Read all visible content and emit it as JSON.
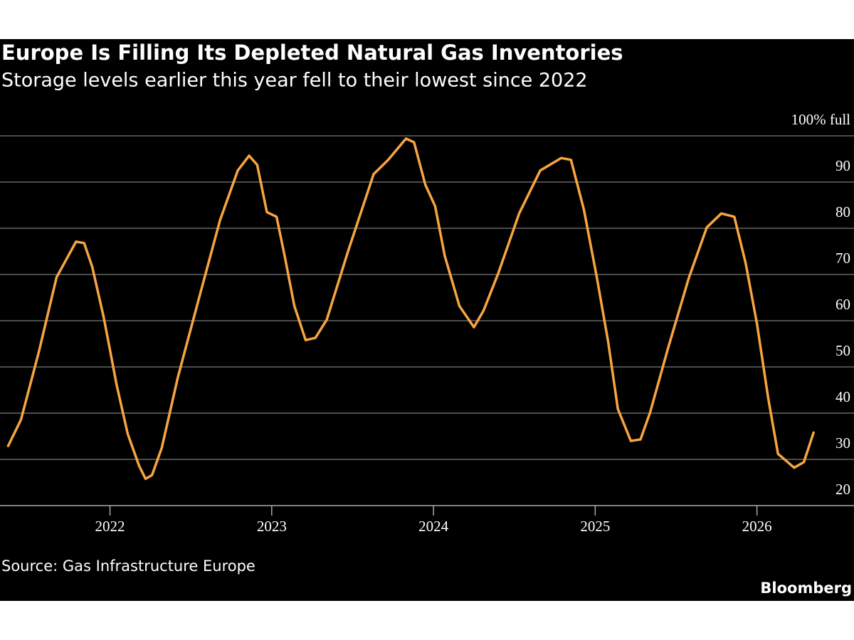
{
  "chart_data": {
    "type": "line",
    "title": "Europe Is Filling Its Depleted Natural Gas Inventories",
    "subtitle": "Storage levels earlier this year fell to their lowest since 2022",
    "source": "Source: Gas Infrastructure Europe",
    "brand": "Bloomberg",
    "x": [
      2021.37,
      2021.45,
      2021.56,
      2021.67,
      2021.79,
      2021.84,
      2021.89,
      2021.96,
      2022.0,
      2022.04,
      2022.11,
      2022.18,
      2022.22,
      2022.26,
      2022.32,
      2022.42,
      2022.55,
      2022.68,
      2022.79,
      2022.86,
      2022.91,
      2022.97,
      2023.03,
      2023.08,
      2023.14,
      2023.21,
      2023.27,
      2023.34,
      2023.47,
      2023.63,
      2023.72,
      2023.83,
      2023.88,
      2023.95,
      2024.01,
      2024.07,
      2024.16,
      2024.25,
      2024.31,
      2024.4,
      2024.53,
      2024.66,
      2024.79,
      2024.85,
      2024.93,
      2025.01,
      2025.08,
      2025.14,
      2025.22,
      2025.28,
      2025.34,
      2025.45,
      2025.58,
      2025.69,
      2025.78,
      2025.86,
      2025.93,
      2026.0,
      2026.07,
      2026.13,
      2026.23,
      2026.29,
      2026.35
    ],
    "values": [
      32.9,
      38.6,
      53.2,
      69.4,
      77.1,
      76.8,
      71.7,
      60.9,
      53.7,
      46.3,
      35.5,
      28.6,
      25.8,
      26.6,
      32.5,
      47.8,
      64.8,
      81.7,
      92.5,
      95.7,
      93.7,
      83.5,
      82.5,
      74.0,
      63.2,
      55.8,
      56.3,
      60.2,
      74.8,
      91.7,
      94.8,
      99.4,
      98.6,
      89.4,
      84.8,
      74.0,
      63.2,
      58.6,
      62.2,
      70.2,
      83.2,
      92.5,
      95.2,
      94.8,
      84.0,
      69.4,
      55.5,
      40.9,
      34.0,
      34.3,
      40.2,
      54.0,
      69.4,
      80.2,
      83.2,
      82.5,
      72.5,
      59.4,
      43.2,
      31.2,
      28.2,
      29.4,
      35.8
    ],
    "color": "#f7a540",
    "xlim": [
      2021.32,
      2026.6
    ],
    "xticks": [
      2022,
      2023,
      2024,
      2025,
      2026
    ],
    "ylim": [
      20,
      100
    ],
    "yticks": [
      20,
      30,
      40,
      50,
      60,
      70,
      80,
      90,
      {
        "value": 100,
        "label": "100% full"
      }
    ],
    "grid": true
  }
}
